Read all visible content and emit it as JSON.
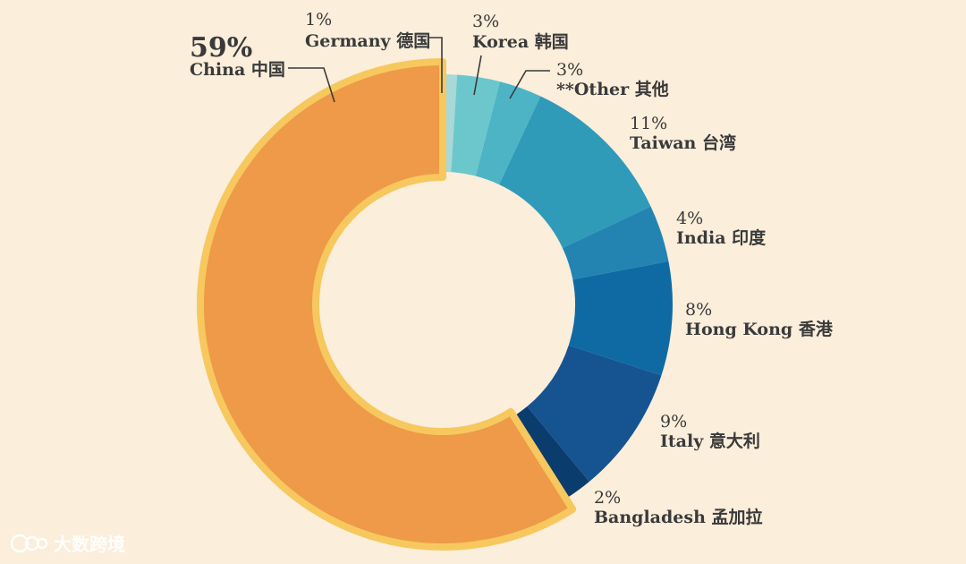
{
  "chart_data": {
    "type": "pie",
    "subtype": "donut",
    "slices": [
      {
        "label": "Germany 德国",
        "value": 1,
        "value_label": "1%",
        "color": "#a8d8d8"
      },
      {
        "label": "Korea 韩国",
        "value": 3,
        "value_label": "3%",
        "color": "#6cc7cc"
      },
      {
        "label": "**Other 其他",
        "value": 3,
        "value_label": "3%",
        "color": "#4db4c6"
      },
      {
        "label": "Taiwan 台湾",
        "value": 11,
        "value_label": "11%",
        "color": "#2f9bb9"
      },
      {
        "label": "India 印度",
        "value": 4,
        "value_label": "4%",
        "color": "#2384b2"
      },
      {
        "label": "Hong Kong 香港",
        "value": 8,
        "value_label": "8%",
        "color": "#0f6aa4"
      },
      {
        "label": "Italy 意大利",
        "value": 9,
        "value_label": "9%",
        "color": "#155490"
      },
      {
        "label": "Bangladesh 孟加拉",
        "value": 2,
        "value_label": "2%",
        "color": "#0b3c6e"
      },
      {
        "label": "China 中国",
        "value": 59,
        "value_label": "59%",
        "color": "#ee9a48",
        "highlight": true,
        "outline_color": "#f7c85e"
      }
    ],
    "legend": "none",
    "labels": "outside-with-leader-lines"
  },
  "watermark": {
    "text": "大数跨境",
    "icon": "logo-icon"
  }
}
